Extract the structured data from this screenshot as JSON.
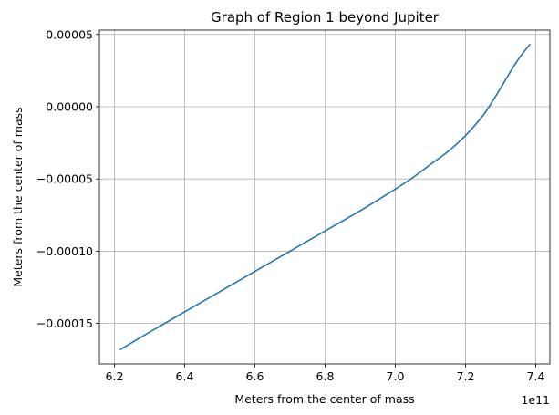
{
  "chart_data": {
    "type": "line",
    "title": "Graph of Region 1 beyond Jupiter",
    "xlabel": "Meters from the center of mass",
    "ylabel": "Meters from the center of mass",
    "x_offset_label": "1e11",
    "xlim": [
      6.2,
      7.4
    ],
    "ylim": [
      -0.000178,
      5.3e-05
    ],
    "x_ticks": [
      6.2,
      6.4,
      6.6,
      6.8,
      7.0,
      7.2,
      7.4
    ],
    "x_tick_labels": [
      "6.2",
      "6.4",
      "6.6",
      "6.8",
      "7.0",
      "7.2",
      "7.4"
    ],
    "y_ticks": [
      -0.00015,
      -0.0001,
      -5e-05,
      0.0,
      5e-05
    ],
    "y_tick_labels": [
      "−0.00015",
      "−0.00010",
      "−0.00005",
      "0.00000",
      "0.00005"
    ],
    "grid": true,
    "series": [
      {
        "color": "#1f77b4",
        "points": [
          [
            6.217,
            -0.000168
          ],
          [
            6.3,
            -0.000156
          ],
          [
            6.4,
            -0.000142
          ],
          [
            6.5,
            -0.000128
          ],
          [
            6.6,
            -0.000114
          ],
          [
            6.7,
            -0.0001
          ],
          [
            6.8,
            -8.6e-05
          ],
          [
            6.9,
            -7.2e-05
          ],
          [
            7.0,
            -5.7e-05
          ],
          [
            7.05,
            -4.9e-05
          ],
          [
            7.1,
            -4e-05
          ],
          [
            7.15,
            -3.1e-05
          ],
          [
            7.2,
            -2e-05
          ],
          [
            7.25,
            -6e-06
          ],
          [
            7.28,
            5e-06
          ],
          [
            7.31,
            1.7e-05
          ],
          [
            7.34,
            2.9e-05
          ],
          [
            7.36,
            3.6e-05
          ],
          [
            7.383,
            4.3e-05
          ]
        ]
      }
    ]
  }
}
